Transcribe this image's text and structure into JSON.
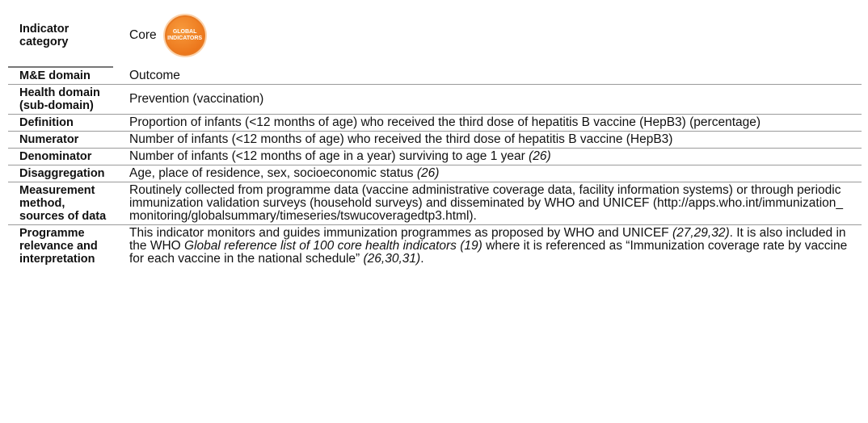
{
  "table": {
    "rows": [
      {
        "label": "Indicator category",
        "value": [
          "Core"
        ],
        "badge": [
          "GLOBAL",
          "INDICATORS"
        ]
      },
      {
        "label": "M&E domain",
        "value": [
          "Outcome"
        ]
      },
      {
        "label": "Health domain (sub-domain)",
        "value": [
          "Prevention (vaccination)"
        ]
      },
      {
        "label": "Definition",
        "value": [
          "Proportion of infants (<12 months of age) who received the third dose of hepatitis B vaccine (HepB3) (percentage)"
        ]
      },
      {
        "label": "Numerator",
        "value": [
          "Number of infants (<12 months of age) who received the third dose of hepatitis B vaccine (HepB3)"
        ]
      },
      {
        "label": "Denominator",
        "value": [
          "Number of infants (<12 months of age in a year) surviving to age 1 year ",
          {
            "text": "(26)",
            "italic": true
          }
        ]
      },
      {
        "label": "Disaggregation",
        "value": [
          "Age, place of residence, sex, socioeconomic status ",
          {
            "text": "(26)",
            "italic": true
          }
        ]
      },
      {
        "label": "Measurement method, sources of data",
        "value": [
          "Routinely collected from programme data (vaccine administrative coverage data, facility information systems) or through periodic immunization validation surveys (household surveys) and disseminated by WHO and UNICEF (http://apps.who.int/immunization_ monitoring/globalsummary/timeseries/tswucoveragedtp3.html)."
        ]
      },
      {
        "label": "Programme relevance and interpretation",
        "value": [
          "This indicator monitors and guides immunization programmes as proposed by WHO and UNICEF ",
          {
            "text": "(27,29,32)",
            "italic": true
          },
          ". It is also included in the WHO ",
          {
            "text": "Global reference list of 100 core health indicators (19)",
            "italic": true
          },
          " where it is referenced as “Immunization coverage rate by vaccine for each vaccine in the national schedule” ",
          {
            "text": "(26,30,31)",
            "italic": true
          },
          "."
        ]
      }
    ]
  }
}
